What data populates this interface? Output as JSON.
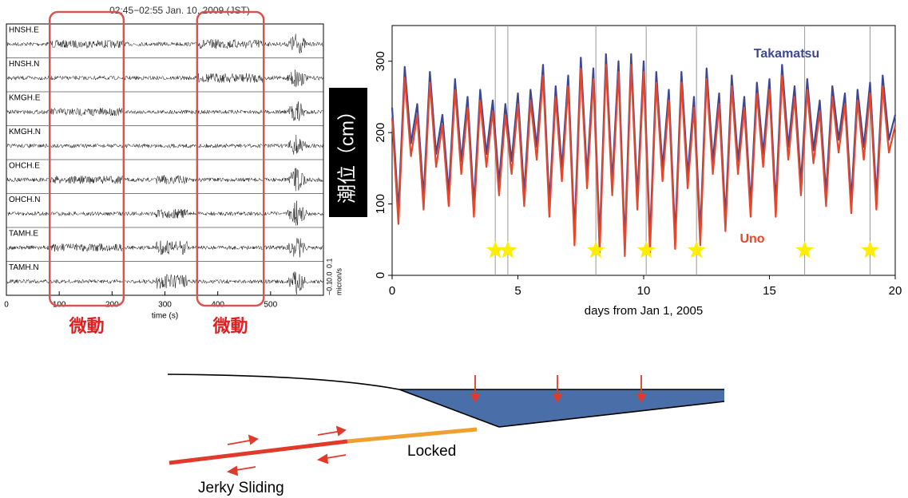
{
  "chart_data": [
    {
      "type": "seismogram",
      "title": "02:45−02:55 Jan. 10, 2009 (JST)",
      "traces": [
        "HNSH.E",
        "HNSH.N",
        "KMGH.E",
        "KMGH.N",
        "OHCH.E",
        "OHCH.N",
        "TAMH.E",
        "TAMH.N"
      ],
      "xlim": [
        0,
        600
      ],
      "xticks": [
        0,
        100,
        200,
        300,
        400,
        500
      ],
      "xlabel": "time (s)",
      "scale_labels": [
        "−0.1",
        "0.0",
        "0.1"
      ],
      "scale_unit": "micron/s",
      "highlights": [
        {
          "range": [
            82,
            222
          ],
          "label": "微動"
        },
        {
          "range": [
            361,
            487
          ],
          "label": "微動"
        }
      ],
      "highlight_color": "#d9534f"
    },
    {
      "type": "line",
      "x": [
        0,
        0.25,
        0.5,
        0.75,
        1,
        1.25,
        1.5,
        1.75,
        2,
        2.25,
        2.5,
        2.75,
        3,
        3.25,
        3.5,
        3.75,
        4,
        4.25,
        4.5,
        4.75,
        5,
        5.25,
        5.5,
        5.75,
        6,
        6.25,
        6.5,
        6.75,
        7,
        7.25,
        7.5,
        7.75,
        8,
        8.25,
        8.5,
        8.75,
        9,
        9.25,
        9.5,
        9.75,
        10,
        10.25,
        10.5,
        10.75,
        11,
        11.25,
        11.5,
        11.75,
        12,
        12.25,
        12.5,
        12.75,
        13,
        13.25,
        13.5,
        13.75,
        14,
        14.25,
        14.5,
        14.75,
        15,
        15.25,
        15.5,
        15.75,
        16,
        16.25,
        16.5,
        16.75,
        17,
        17.25,
        17.5,
        17.75,
        18,
        18.25,
        18.5,
        18.75,
        19,
        19.25,
        19.5,
        19.75,
        20
      ],
      "series": [
        {
          "name": "Takamatsu",
          "color": "#3c4896",
          "values": [
            235,
            90,
            292,
            185,
            240,
            110,
            285,
            170,
            225,
            115,
            275,
            160,
            250,
            100,
            260,
            170,
            245,
            130,
            240,
            160,
            255,
            115,
            260,
            180,
            295,
            100,
            265,
            150,
            280,
            60,
            305,
            140,
            290,
            50,
            310,
            130,
            300,
            45,
            310,
            110,
            300,
            50,
            285,
            150,
            260,
            55,
            285,
            140,
            250,
            60,
            290,
            160,
            255,
            80,
            280,
            160,
            250,
            100,
            270,
            170,
            275,
            100,
            295,
            180,
            265,
            130,
            275,
            175,
            245,
            115,
            265,
            190,
            255,
            105,
            260,
            180,
            270,
            110,
            280,
            190,
            225
          ]
        },
        {
          "name": "Uno",
          "color": "#e8462a",
          "values": [
            220,
            72,
            277,
            167,
            225,
            92,
            270,
            152,
            210,
            97,
            260,
            142,
            235,
            82,
            245,
            152,
            230,
            112,
            225,
            142,
            240,
            97,
            245,
            162,
            280,
            82,
            250,
            132,
            265,
            42,
            290,
            122,
            275,
            32,
            295,
            112,
            285,
            27,
            295,
            92,
            285,
            32,
            270,
            132,
            245,
            37,
            270,
            122,
            235,
            42,
            275,
            142,
            240,
            62,
            265,
            142,
            235,
            82,
            255,
            152,
            260,
            82,
            280,
            162,
            250,
            112,
            260,
            157,
            230,
            97,
            250,
            172,
            240,
            87,
            245,
            162,
            255,
            92,
            265,
            172,
            210
          ]
        }
      ],
      "xlim": [
        0,
        20
      ],
      "xticks": [
        0,
        5,
        10,
        15,
        20
      ],
      "ylim": [
        0,
        350
      ],
      "yticks": [
        0,
        100,
        200,
        300
      ],
      "xlabel": "days from Jan 1, 2005",
      "ylabel": "潮位（cm）",
      "events_x": [
        4.1,
        4.6,
        8.1,
        10.1,
        12.1,
        16.4,
        19.0
      ],
      "events_y": 35,
      "event_color": "#ffee00"
    }
  ],
  "diagram": {
    "labels": [
      "Locked",
      "Jerky Sliding"
    ]
  }
}
